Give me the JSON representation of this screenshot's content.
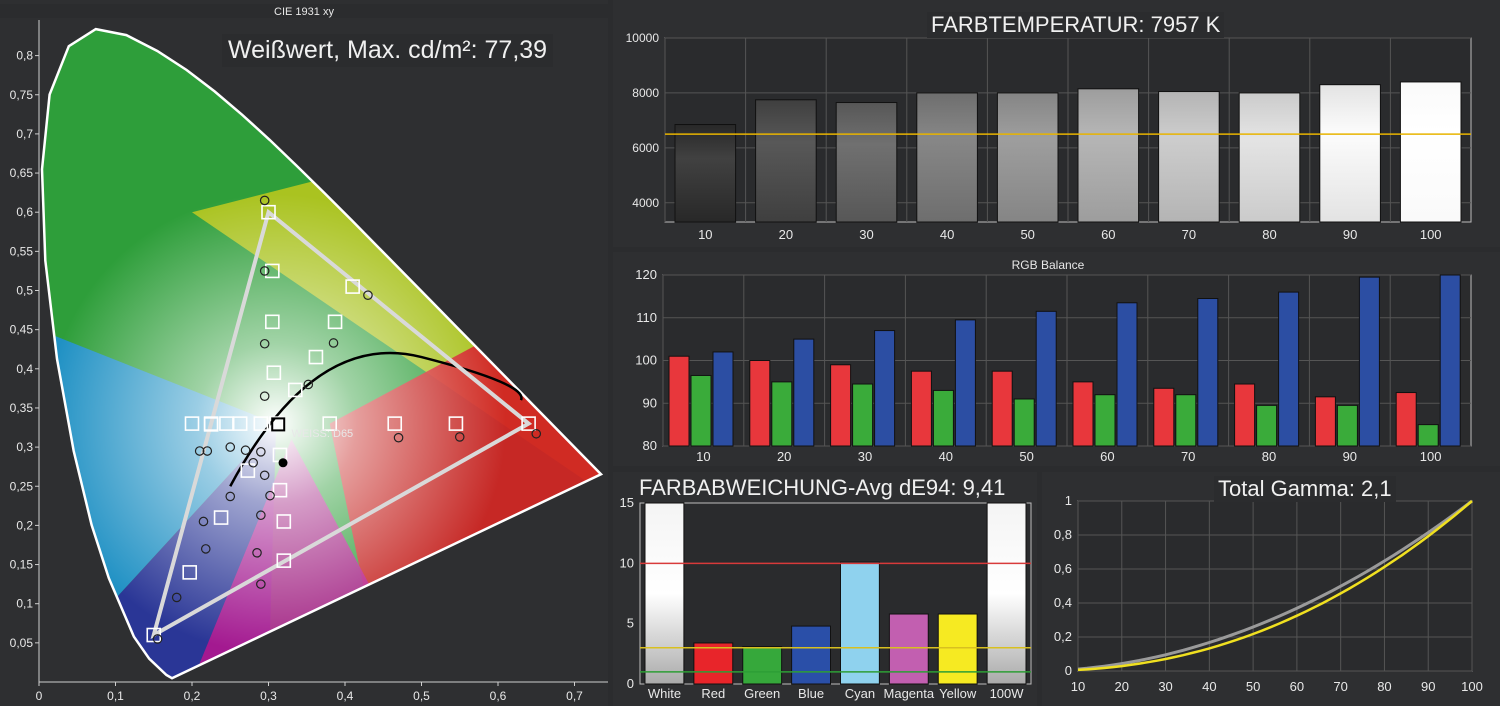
{
  "cie": {
    "title": "CIE 1931 xy",
    "white_label": "Weißwert, Max. cd/m²: 77,39",
    "whitepoint_label": "WEISS: D65",
    "x_ticks": [
      "0",
      "0,1",
      "0,2",
      "0,3",
      "0,4",
      "0,5",
      "0,6",
      "0,7"
    ],
    "y_ticks": [
      "0,05",
      "0,1",
      "0,15",
      "0,2",
      "0,25",
      "0,3",
      "0,35",
      "0,4",
      "0,45",
      "0,5",
      "0,55",
      "0,6",
      "0,65",
      "0,7",
      "0,75",
      "0,8"
    ],
    "target_gamut": [
      [
        0.64,
        0.33
      ],
      [
        0.3,
        0.6
      ],
      [
        0.15,
        0.06
      ]
    ],
    "measured_gamut": [
      [
        0.65,
        0.32
      ],
      [
        0.295,
        0.615
      ],
      [
        0.155,
        0.055
      ]
    ],
    "target_squares": [
      [
        0.64,
        0.33
      ],
      [
        0.3,
        0.6
      ],
      [
        0.15,
        0.06
      ],
      [
        0.225,
        0.329
      ],
      [
        0.31,
        0.33
      ],
      [
        0.41,
        0.505
      ],
      [
        0.387,
        0.46
      ],
      [
        0.362,
        0.415
      ],
      [
        0.335,
        0.373
      ],
      [
        0.305,
        0.525
      ],
      [
        0.305,
        0.46
      ],
      [
        0.307,
        0.395
      ],
      [
        0.2,
        0.33
      ],
      [
        0.225,
        0.33
      ],
      [
        0.245,
        0.33
      ],
      [
        0.263,
        0.33
      ],
      [
        0.29,
        0.33
      ],
      [
        0.38,
        0.33
      ],
      [
        0.465,
        0.33
      ],
      [
        0.545,
        0.33
      ],
      [
        0.273,
        0.27
      ],
      [
        0.315,
        0.29
      ],
      [
        0.315,
        0.245
      ],
      [
        0.32,
        0.205
      ],
      [
        0.32,
        0.155
      ],
      [
        0.238,
        0.21
      ],
      [
        0.197,
        0.14
      ]
    ],
    "measured_points": [
      [
        0.295,
        0.615
      ],
      [
        0.295,
        0.525
      ],
      [
        0.295,
        0.432
      ],
      [
        0.295,
        0.365
      ],
      [
        0.43,
        0.494
      ],
      [
        0.385,
        0.433
      ],
      [
        0.352,
        0.38
      ],
      [
        0.65,
        0.317
      ],
      [
        0.55,
        0.313
      ],
      [
        0.47,
        0.312
      ],
      [
        0.25,
        0.3
      ],
      [
        0.29,
        0.294
      ],
      [
        0.27,
        0.296
      ],
      [
        0.28,
        0.28
      ],
      [
        0.295,
        0.264
      ],
      [
        0.302,
        0.238
      ],
      [
        0.29,
        0.213
      ],
      [
        0.285,
        0.165
      ],
      [
        0.29,
        0.125
      ],
      [
        0.25,
        0.237
      ],
      [
        0.215,
        0.205
      ],
      [
        0.218,
        0.17
      ],
      [
        0.18,
        0.108
      ],
      [
        0.155,
        0.055
      ],
      [
        0.22,
        0.295
      ],
      [
        0.21,
        0.295
      ]
    ],
    "measured_white": [
      0.319,
      0.28
    ]
  },
  "ct": {
    "title": "FARBTEMPERATUR: 7957 K",
    "categories": [
      "10",
      "20",
      "30",
      "40",
      "50",
      "60",
      "70",
      "80",
      "90",
      "100"
    ],
    "values": [
      6850,
      7750,
      7650,
      8000,
      8000,
      8150,
      8050,
      8000,
      8300,
      8400
    ],
    "y_ticks": [
      "4000",
      "6000",
      "8000",
      "10000"
    ],
    "ylim": [
      3300,
      10000
    ],
    "reference": 6500,
    "colors": {
      "reference": "#e8b400"
    }
  },
  "rgb": {
    "title": "RGB Balance",
    "categories": [
      "10",
      "20",
      "30",
      "40",
      "50",
      "60",
      "70",
      "80",
      "90",
      "100"
    ],
    "series": [
      {
        "values": [
          101,
          100,
          99,
          97.5,
          97.5,
          95,
          93.5,
          94.5,
          91.5,
          92.5
        ]
      },
      {
        "values": [
          96.5,
          95,
          94.5,
          93,
          91,
          92,
          92,
          89.5,
          89.5,
          85
        ]
      },
      {
        "values": [
          102,
          105,
          107,
          109.5,
          111.5,
          113.5,
          114.5,
          116,
          119.5,
          120
        ]
      }
    ],
    "y_ticks": [
      "80",
      "90",
      "100",
      "110",
      "120"
    ],
    "ylim": [
      80,
      120
    ],
    "colors": {
      "red": "#e8373c",
      "green": "#3aab3a",
      "blue": "#2c4ea3"
    }
  },
  "de": {
    "title": "FARBABWEICHUNG-Avg dE94: 9,41",
    "categories": [
      "White",
      "Red",
      "Green",
      "Blue",
      "Cyan",
      "Magenta",
      "Yellow",
      "100W"
    ],
    "values": [
      15,
      3.4,
      3.1,
      4.8,
      10.1,
      5.8,
      5.8,
      15
    ],
    "bar_colors": [
      "#e9e9e9",
      "#e8252a",
      "#36a83b",
      "#2a4fa8",
      "#8fd2ee",
      "#c25fb0",
      "#f6ea22",
      "#e9e9e9"
    ],
    "y_ticks": [
      "0",
      "5",
      "10",
      "15"
    ],
    "ylim": [
      0,
      15
    ],
    "thresholds": [
      {
        "value": 10,
        "color": "#d83a3a"
      },
      {
        "value": 3,
        "color": "#d8c020"
      },
      {
        "value": 1,
        "color": "#2e9e36"
      }
    ]
  },
  "gamma": {
    "title": "Total Gamma: 2,1",
    "x_ticks": [
      "10",
      "20",
      "30",
      "40",
      "50",
      "60",
      "70",
      "80",
      "90",
      "100"
    ],
    "y_ticks": [
      "0",
      "0,2",
      "0,4",
      "0,6",
      "0,8",
      "1"
    ],
    "target_gamma": 2.2,
    "measured_gamma": 2.1,
    "colors": {
      "target": "#9a9a9a",
      "measured": "#f0e020"
    }
  },
  "chart_data": [
    {
      "type": "scatter",
      "title": "CIE 1931 xy",
      "xlim": [
        0,
        0.75
      ],
      "ylim": [
        0,
        0.85
      ],
      "series": [
        {
          "name": "WEISS: D65",
          "values": [
            [
              0.3127,
              0.329
            ]
          ]
        }
      ]
    },
    {
      "type": "bar",
      "title": "FARBTEMPERATUR: 7957 K",
      "categories": [
        "10",
        "20",
        "30",
        "40",
        "50",
        "60",
        "70",
        "80",
        "90",
        "100"
      ],
      "values": [
        6850,
        7750,
        7650,
        8000,
        8000,
        8150,
        8050,
        8000,
        8300,
        8400
      ],
      "ylim": [
        3300,
        10000
      ]
    },
    {
      "type": "bar",
      "title": "RGB Balance",
      "categories": [
        "10",
        "20",
        "30",
        "40",
        "50",
        "60",
        "70",
        "80",
        "90",
        "100"
      ],
      "series": [
        {
          "values": [
            101,
            100,
            99,
            97.5,
            97.5,
            95,
            93.5,
            94.5,
            91.5,
            92.5
          ]
        },
        {
          "values": [
            96.5,
            95,
            94.5,
            93,
            91,
            92,
            92,
            89.5,
            89.5,
            85
          ]
        },
        {
          "values": [
            102,
            105,
            107,
            109.5,
            111.5,
            113.5,
            114.5,
            116,
            119.5,
            120
          ]
        }
      ],
      "ylim": [
        80,
        120
      ]
    },
    {
      "type": "bar",
      "title": "FARBABWEICHUNG-Avg dE94: 9,41",
      "categories": [
        "White",
        "Red",
        "Green",
        "Blue",
        "Cyan",
        "Magenta",
        "Yellow",
        "100W"
      ],
      "values": [
        15,
        3.4,
        3.1,
        4.8,
        10.1,
        5.8,
        5.8,
        15
      ],
      "ylim": [
        0,
        15
      ]
    },
    {
      "type": "line",
      "title": "Total Gamma: 2,1",
      "x": [
        10,
        20,
        30,
        40,
        50,
        60,
        70,
        80,
        90,
        100
      ],
      "series": [
        {
          "values": [
            0.006,
            0.029,
            0.071,
            0.134,
            0.218,
            0.325,
            0.456,
            0.612,
            0.793,
            1.0
          ]
        },
        {
          "values": [
            0.008,
            0.034,
            0.08,
            0.146,
            0.233,
            0.341,
            0.473,
            0.627,
            0.802,
            1.0
          ]
        }
      ],
      "ylim": [
        0,
        1
      ]
    }
  ]
}
